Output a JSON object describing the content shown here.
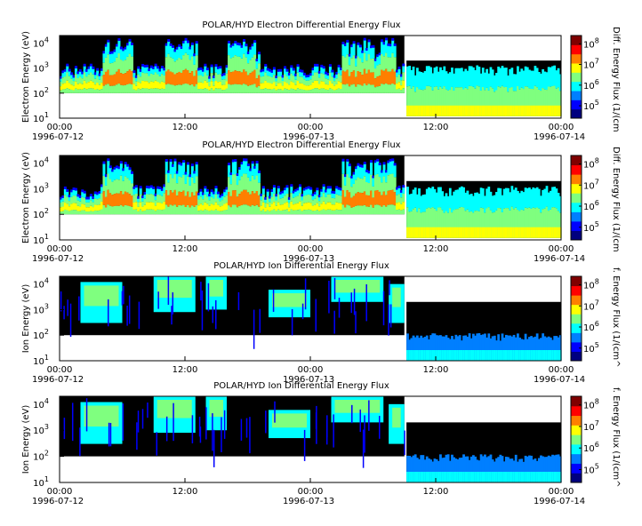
{
  "colors": {
    "nodata": "#ffffff",
    "fill": "#000000",
    "scale": [
      "#00007f",
      "#0000ff",
      "#007fff",
      "#00ffff",
      "#7fff7f",
      "#ffff00",
      "#ff7f00",
      "#ff0000",
      "#7f0000"
    ]
  },
  "chart_data": [
    {
      "type": "heatmap",
      "title": "POLAR/HYD  Electron Differential Energy Flux",
      "ylabel": "Electron Energy (eV)",
      "yscale": "log",
      "ylim": [
        10,
        20000
      ],
      "yticks": [
        {
          "exp": "1"
        },
        {
          "exp": "2"
        },
        {
          "exp": "3"
        },
        {
          "exp": "4"
        }
      ],
      "xticks": [
        {
          "time": "00:00",
          "date": "1996-07-12"
        },
        {
          "time": "12:00",
          "date": ""
        },
        {
          "time": "00:00",
          "date": "1996-07-13"
        },
        {
          "time": "12:00",
          "date": ""
        },
        {
          "time": "00:00",
          "date": "1996-07-14"
        }
      ],
      "colorbar": {
        "label": "Diff. Energy Flux (1/(cm",
        "ticks": [
          {
            "exp": "5"
          },
          {
            "exp": "6"
          },
          {
            "exp": "7"
          },
          {
            "exp": "8"
          }
        ]
      },
      "kind": "electron"
    },
    {
      "type": "heatmap",
      "title": "POLAR/HYD  Electron Differential Energy Flux",
      "ylabel": "Electron Energy (eV)",
      "yscale": "log",
      "ylim": [
        10,
        20000
      ],
      "yticks": [
        {
          "exp": "1"
        },
        {
          "exp": "2"
        },
        {
          "exp": "3"
        },
        {
          "exp": "4"
        }
      ],
      "xticks": [
        {
          "time": "00:00",
          "date": "1996-07-12"
        },
        {
          "time": "12:00",
          "date": ""
        },
        {
          "time": "00:00",
          "date": "1996-07-13"
        },
        {
          "time": "12:00",
          "date": ""
        },
        {
          "time": "00:00",
          "date": "1996-07-14"
        }
      ],
      "colorbar": {
        "label": "Diff. Energy Flux (1/(cm",
        "ticks": [
          {
            "exp": "5"
          },
          {
            "exp": "6"
          },
          {
            "exp": "7"
          },
          {
            "exp": "8"
          }
        ]
      },
      "kind": "electron"
    },
    {
      "type": "heatmap",
      "title": "POLAR/HYD  Ion Differential Energy Flux",
      "ylabel": "Ion Energy (eV)",
      "yscale": "log",
      "ylim": [
        10,
        20000
      ],
      "yticks": [
        {
          "exp": "1"
        },
        {
          "exp": "2"
        },
        {
          "exp": "3"
        },
        {
          "exp": "4"
        }
      ],
      "xticks": [
        {
          "time": "00:00",
          "date": "1996-07-12"
        },
        {
          "time": "12:00",
          "date": ""
        },
        {
          "time": "00:00",
          "date": "1996-07-13"
        },
        {
          "time": "12:00",
          "date": ""
        },
        {
          "time": "00:00",
          "date": "1996-07-14"
        }
      ],
      "colorbar": {
        "label": "f. Energy Flux (1/(cm^",
        "ticks": [
          {
            "exp": "5"
          },
          {
            "exp": "6"
          },
          {
            "exp": "7"
          },
          {
            "exp": "8"
          }
        ]
      },
      "kind": "ion"
    },
    {
      "type": "heatmap",
      "title": "POLAR/HYD  Ion Differential Energy Flux",
      "ylabel": "Ion Energy (eV)",
      "yscale": "log",
      "ylim": [
        10,
        20000
      ],
      "yticks": [
        {
          "exp": "1"
        },
        {
          "exp": "2"
        },
        {
          "exp": "3"
        },
        {
          "exp": "4"
        }
      ],
      "xticks": [
        {
          "time": "00:00",
          "date": "1996-07-12"
        },
        {
          "time": "12:00",
          "date": ""
        },
        {
          "time": "00:00",
          "date": "1996-07-13"
        },
        {
          "time": "12:00",
          "date": ""
        },
        {
          "time": "00:00",
          "date": "1996-07-14"
        }
      ],
      "colorbar": {
        "label": "f. Energy Flux (1/(cm^",
        "ticks": [
          {
            "exp": "5"
          },
          {
            "exp": "6"
          },
          {
            "exp": "7"
          },
          {
            "exp": "8"
          }
        ]
      },
      "kind": "ion"
    }
  ]
}
